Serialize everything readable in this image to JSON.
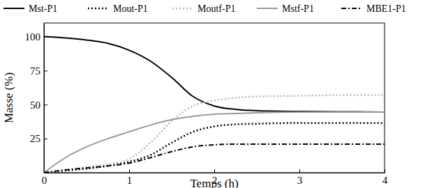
{
  "chart_data": {
    "type": "line",
    "x_label": "Temps (h)",
    "y_label": "Masse (%)",
    "x": [
      0,
      0.25,
      0.5,
      0.75,
      1,
      1.25,
      1.5,
      1.75,
      2,
      2.25,
      2.5,
      3,
      3.5,
      4
    ],
    "xlim": [
      0,
      4
    ],
    "xticks": [
      0,
      1,
      2,
      3,
      4
    ],
    "ylim": [
      0,
      110
    ],
    "yticks": [
      25,
      50,
      75,
      100
    ],
    "grid": false,
    "legend": "top",
    "series": [
      {
        "name": "Mst-P1",
        "color": "#000000",
        "line_style": "solid",
        "values": [
          100,
          99,
          97.5,
          95,
          90,
          82,
          70,
          56,
          49,
          46.5,
          45.5,
          45,
          44.8,
          44.5
        ]
      },
      {
        "name": "Mout-P1",
        "color": "#000000",
        "line_style": "dotted",
        "values": [
          0,
          1.5,
          3,
          5,
          8,
          13,
          22,
          30,
          34,
          35.5,
          36,
          36.5,
          36.5,
          36.5
        ]
      },
      {
        "name": "Moutf-P1",
        "color": "#b5b5b5",
        "line_style": "dotted",
        "values": [
          0,
          2,
          4,
          6,
          10,
          22,
          38,
          49,
          53,
          55,
          56,
          56.5,
          57,
          57
        ]
      },
      {
        "name": "Mstf-P1",
        "color": "#9a9a9a",
        "line_style": "solid",
        "values": [
          0,
          11,
          19,
          25,
          30,
          35,
          39,
          41.5,
          43,
          43.5,
          44,
          44.5,
          44.5,
          44.5
        ]
      },
      {
        "name": "MBE1-P1",
        "color": "#000000",
        "line_style": "dashdot",
        "values": [
          0,
          2,
          3.5,
          5,
          7,
          11,
          15.5,
          19,
          20.5,
          21,
          21,
          21,
          21,
          21
        ]
      }
    ]
  }
}
